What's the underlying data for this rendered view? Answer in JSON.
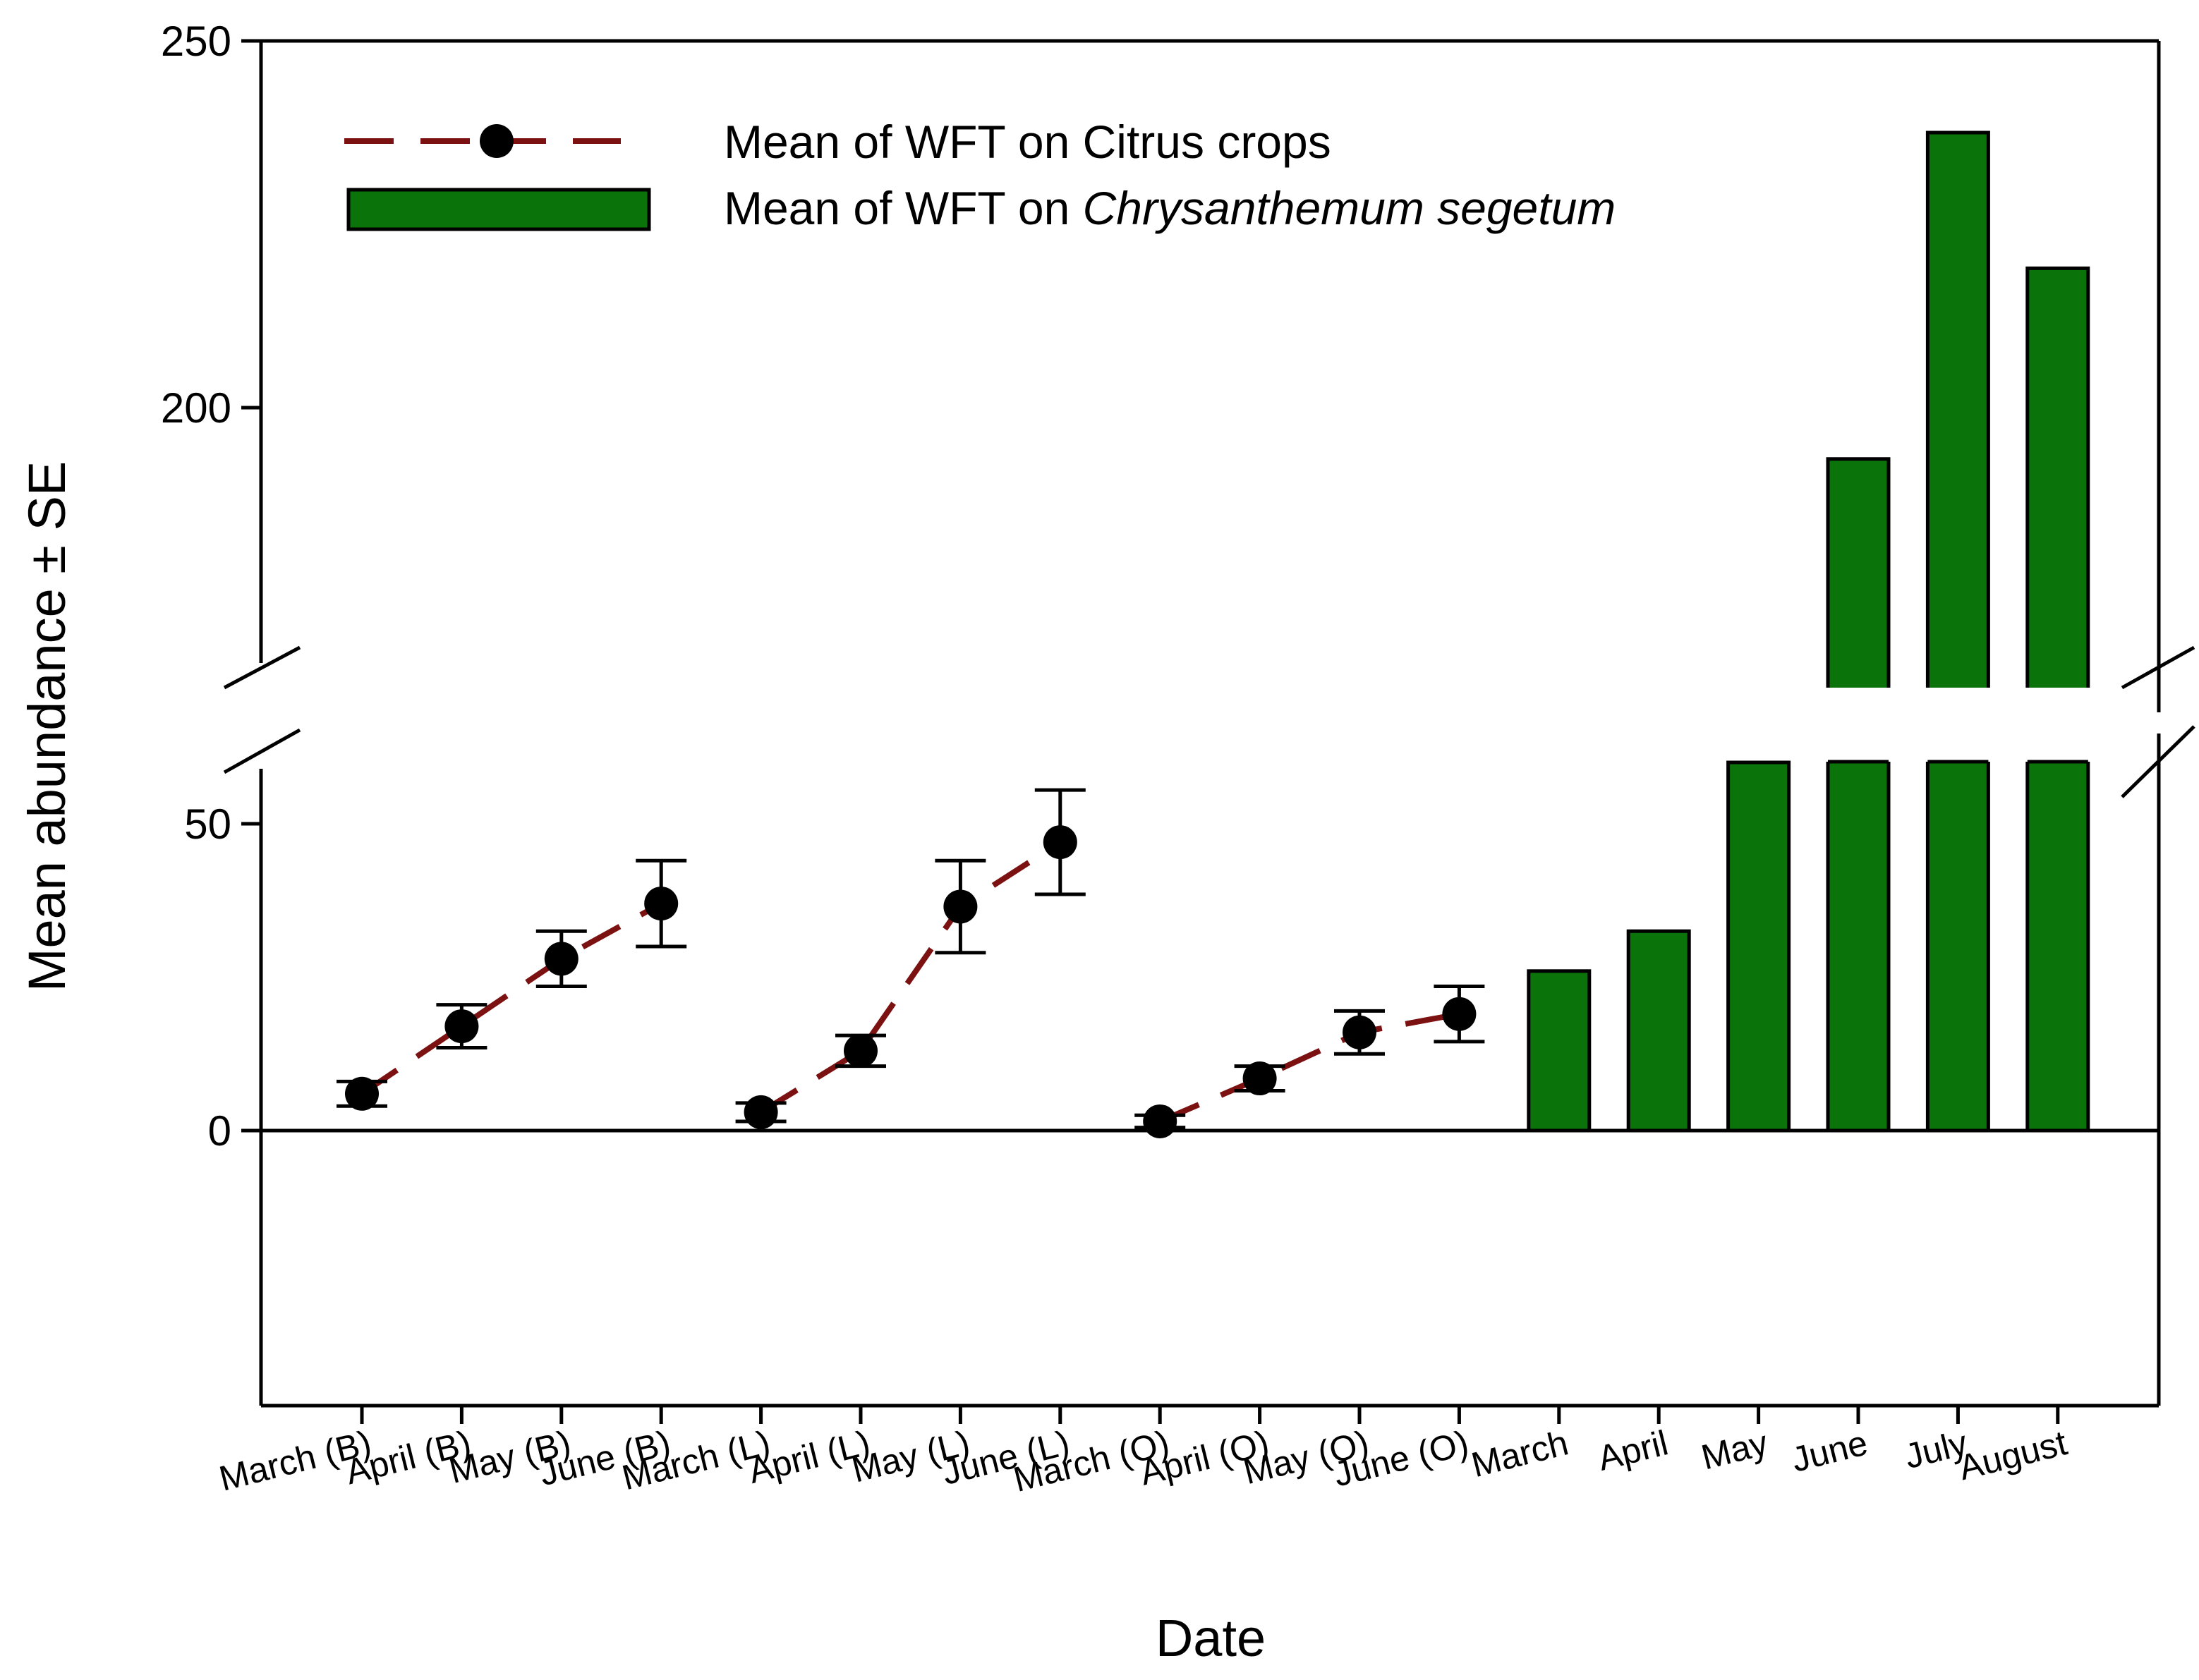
{
  "chart_data": {
    "type": "bar+line",
    "xlabel": "Date",
    "ylabel": "Mean abundance ± SE",
    "y_ticks": [
      "0",
      "50",
      "200",
      "250"
    ],
    "axis_break": {
      "lower_range": [
        -45,
        60
      ],
      "upper_range": [
        155,
        250
      ]
    },
    "categories": [
      "March (B)",
      "April (B)",
      "May (B)",
      "June (B)",
      "March (L)",
      "April (L)",
      "May (L)",
      "June (L)",
      "March (O)",
      "April (O)",
      "May (O)",
      "June (O)",
      "March",
      "April",
      "May",
      "June",
      "July",
      "August"
    ],
    "legend": {
      "line_label": "Mean of WFT on Citrus crops",
      "bar_label_prefix": "Mean of WFT on ",
      "bar_label_species": "Chrysanthemum segetum"
    },
    "line_series": [
      {
        "name": "Citrus (B)",
        "points": [
          {
            "category": "March (B)",
            "mean": 6,
            "se": 2
          },
          {
            "category": "April (B)",
            "mean": 17,
            "se": 3.5
          },
          {
            "category": "May (B)",
            "mean": 28,
            "se": 4.5
          },
          {
            "category": "June (B)",
            "mean": 37,
            "se": 7
          }
        ]
      },
      {
        "name": "Citrus (L)",
        "points": [
          {
            "category": "March (L)",
            "mean": 3,
            "se": 1.5
          },
          {
            "category": "April (L)",
            "mean": 13,
            "se": 2.5
          },
          {
            "category": "May (L)",
            "mean": 36.5,
            "se": 7.5
          },
          {
            "category": "June (L)",
            "mean": 47,
            "se": 8.5
          }
        ]
      },
      {
        "name": "Citrus (O)",
        "points": [
          {
            "category": "March (O)",
            "mean": 1.5,
            "se": 1
          },
          {
            "category": "April (O)",
            "mean": 8.5,
            "se": 2
          },
          {
            "category": "May (O)",
            "mean": 16,
            "se": 3.5
          },
          {
            "category": "June (O)",
            "mean": 19,
            "se": 4.5
          }
        ]
      }
    ],
    "bar_series": {
      "name": "Chrysanthemum segetum",
      "points": [
        {
          "category": "March",
          "value": 26
        },
        {
          "category": "April",
          "value": 32.5
        },
        {
          "category": "May",
          "value": 60
        },
        {
          "category": "June",
          "value": 193
        },
        {
          "category": "July",
          "value": 237.5
        },
        {
          "category": "August",
          "value": 219
        }
      ]
    },
    "colors": {
      "line": "#7b1111",
      "bar": "#0a730a",
      "marker": "#000000",
      "axis": "#000000"
    }
  }
}
